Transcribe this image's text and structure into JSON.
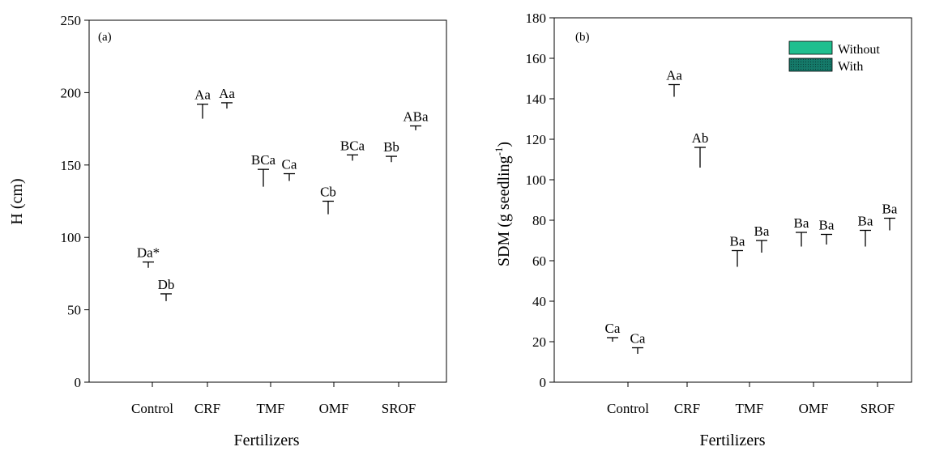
{
  "chart_data": [
    {
      "type": "bar",
      "panel_label": "(a)",
      "xlabel": "Fertilizers",
      "ylabel": "H (cm)",
      "ylim": [
        0,
        250
      ],
      "yticks": [
        "0",
        "50",
        "100",
        "150",
        "200",
        "250"
      ],
      "categories": [
        "Control",
        "CRF",
        "TMF",
        "OMF",
        "SROF"
      ],
      "grid": false,
      "bar_fill": "none",
      "series": [
        {
          "values": [
            82,
            188,
            145,
            123,
            154
          ],
          "error_low": [
            79,
            182,
            135,
            116,
            152
          ],
          "error_high": [
            83,
            192,
            147,
            125,
            156
          ],
          "labels": [
            "Da*",
            "Aa",
            "BCa",
            "Cb",
            "Bb"
          ]
        },
        {
          "values": [
            60,
            191,
            142,
            154,
            175
          ],
          "error_low": [
            56,
            189,
            139,
            153,
            174
          ],
          "error_high": [
            61,
            193,
            144,
            157,
            177
          ],
          "labels": [
            "Db",
            "Aa",
            "Ca",
            "BCa",
            "ABa"
          ]
        }
      ]
    },
    {
      "type": "bar",
      "panel_label": "(b)",
      "xlabel": "Fertilizers",
      "ylabel": "SDM (g seedling",
      "ylabel_sup": "-1",
      "ylabel_close": ")",
      "ylim": [
        0,
        180
      ],
      "yticks": [
        "0",
        "20",
        "40",
        "60",
        "80",
        "100",
        "120",
        "140",
        "160",
        "180"
      ],
      "categories": [
        "Control",
        "CRF",
        "TMF",
        "OMF",
        "SROF"
      ],
      "grid": false,
      "legend_position": "top-right",
      "bar_fill": "none",
      "series": [
        {
          "name": "Without",
          "color": "#1fbf8f",
          "values": [
            21,
            145,
            63,
            72,
            73
          ],
          "error_low": [
            20,
            141,
            57,
            67,
            67
          ],
          "error_high": [
            22,
            147,
            65,
            74,
            75
          ],
          "labels": [
            "Ca",
            "Aa",
            "Ba",
            "Ba",
            "Ba"
          ]
        },
        {
          "name": "With",
          "color": "#157a6a",
          "values": [
            16,
            113,
            67,
            71,
            78
          ],
          "error_low": [
            14,
            106,
            64,
            68,
            75
          ],
          "error_high": [
            17,
            116,
            70,
            73,
            81
          ],
          "labels": [
            "Ca",
            "Ab",
            "Ba",
            "Ba",
            "Ba"
          ]
        }
      ]
    }
  ]
}
